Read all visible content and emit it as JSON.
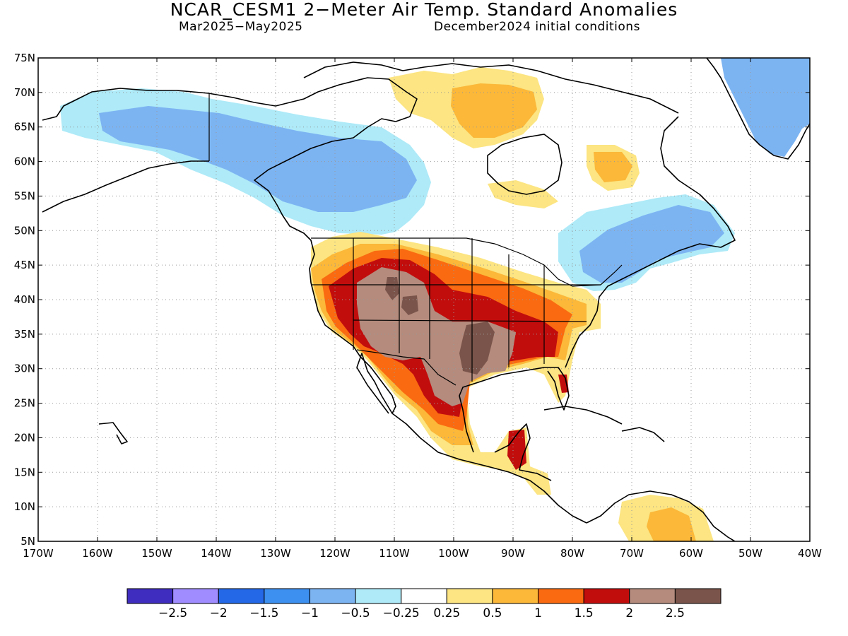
{
  "title": "NCAR_CESM1 2−Meter Air Temp. Standard Anomalies",
  "subtitle_left": "Mar2025−May2025",
  "subtitle_right": "December2024 initial conditions",
  "axes": {
    "lat_labels": [
      "75N",
      "70N",
      "65N",
      "60N",
      "55N",
      "50N",
      "45N",
      "40N",
      "35N",
      "30N",
      "25N",
      "20N",
      "15N",
      "10N",
      "5N"
    ],
    "lon_labels": [
      "170W",
      "160W",
      "150W",
      "140W",
      "130W",
      "120W",
      "110W",
      "100W",
      "90W",
      "80W",
      "70W",
      "60W",
      "50W",
      "40W"
    ],
    "grid": "dotted"
  },
  "colorbar": {
    "colors": [
      "#3f2dbf",
      "#a08cff",
      "#2468e8",
      "#3d8ff0",
      "#7cb4f2",
      "#aeeaf8",
      "#ffffff",
      "#fce582",
      "#fbb839",
      "#fa6a10",
      "#c20d0d",
      "#b48b7d",
      "#7a544a"
    ],
    "labels": [
      "−2.5",
      "−2",
      "−1.5",
      "−1",
      "−0.5",
      "−0.25",
      "0.25",
      "0.5",
      "1",
      "1.5",
      "2",
      "2.5"
    ]
  },
  "map": {
    "region": "North America",
    "variable": "2-meter air temperature standard anomaly",
    "colors": {
      "land_outline": "#000000",
      "ocean": "#ffffff"
    }
  }
}
